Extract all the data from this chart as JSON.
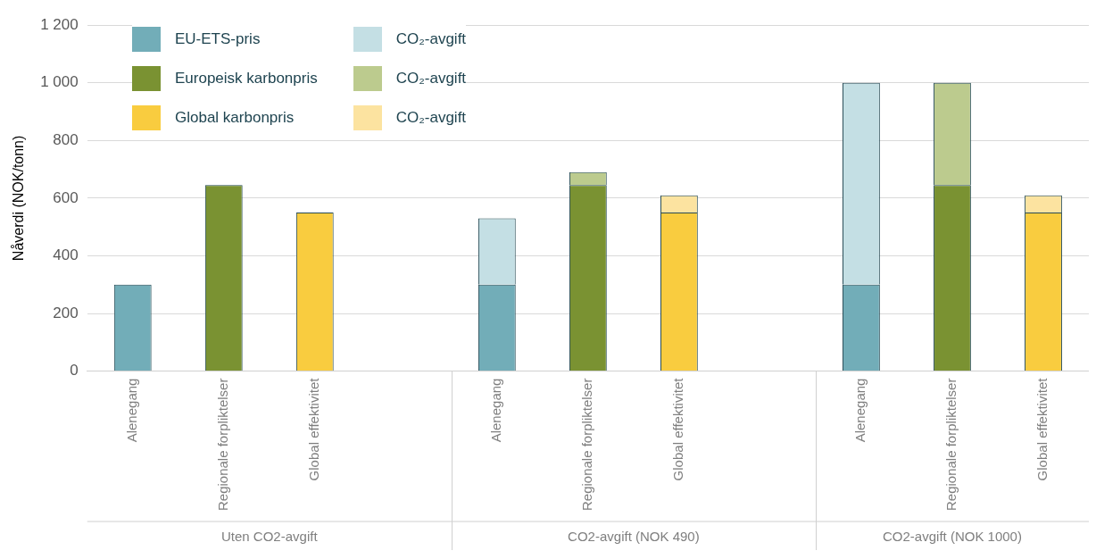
{
  "chart_data": {
    "type": "bar",
    "stacked": true,
    "ylabel": "Nåverdi (NOK/tonn)",
    "categories": [
      "Alenegang",
      "Regionale forpliktelser",
      "Global effektivitet",
      null,
      "Alenegang",
      "Regionale forpliktelser",
      "Global effektivitet",
      null,
      "Alenegang",
      "Regionale forpliktelser",
      "Global effektivitet"
    ],
    "series": [
      {
        "name": "EU-ETS-pris",
        "color": "#72adb8",
        "values": [
          300,
          null,
          null,
          null,
          300,
          null,
          null,
          null,
          300,
          null,
          null
        ]
      },
      {
        "name": "Europeisk karbonpris",
        "color": "#7a9232",
        "values": [
          null,
          645,
          null,
          null,
          null,
          645,
          null,
          null,
          null,
          645,
          null
        ]
      },
      {
        "name": "Global karbonpris",
        "color": "#f9cc3f",
        "values": [
          null,
          null,
          550,
          null,
          null,
          null,
          550,
          null,
          null,
          null,
          550
        ]
      },
      {
        "name": "CO₂-avgift",
        "color": "#c4dfe4",
        "values": [
          null,
          null,
          null,
          null,
          230,
          null,
          null,
          null,
          700,
          null,
          null
        ]
      },
      {
        "name": "CO₂-avgift",
        "color": "#bccb8e",
        "values": [
          null,
          null,
          null,
          null,
          null,
          45,
          null,
          null,
          null,
          355,
          null
        ]
      },
      {
        "name": "CO₂-avgift",
        "color": "#fce3a0",
        "values": [
          null,
          null,
          null,
          null,
          null,
          null,
          60,
          null,
          null,
          null,
          60
        ]
      }
    ],
    "ylim": [
      0,
      1200
    ],
    "yticks": [
      0,
      200,
      400,
      600,
      800,
      1000,
      {
        "value": 1200,
        "label": "1 200"
      }
    ],
    "grid": "y",
    "legend": "top left",
    "annotations": [
      "Uten CO2-avgift",
      "CO2-avgift (NOK 490)",
      "CO2-avgift (NOK 1000)"
    ]
  }
}
